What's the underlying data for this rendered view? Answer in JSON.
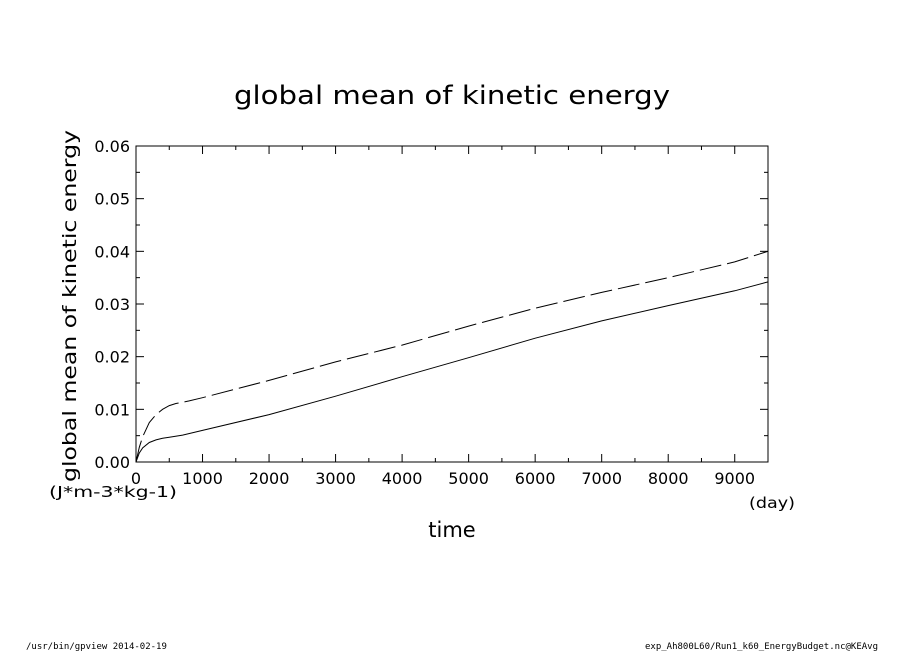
{
  "chart_data": {
    "type": "line",
    "title": "global mean of kinetic energy",
    "xlabel": "time",
    "x_unit": "(day)",
    "ylabel": "global mean of kinetic energy",
    "y_unit": "(J*m-3*kg-1)",
    "xlim": [
      0,
      9500
    ],
    "ylim": [
      0,
      0.06
    ],
    "x_ticks": [
      "0",
      "1000",
      "2000",
      "3000",
      "4000",
      "5000",
      "6000",
      "7000",
      "8000",
      "9000"
    ],
    "y_ticks": [
      "0.00",
      "0.01",
      "0.02",
      "0.03",
      "0.04",
      "0.05",
      "0.06"
    ],
    "grid": false,
    "series": [
      {
        "style": "solid",
        "color": "#000000",
        "points": [
          [
            0,
            0
          ],
          [
            50,
            0.0017
          ],
          [
            100,
            0.0027
          ],
          [
            200,
            0.0037
          ],
          [
            300,
            0.0042
          ],
          [
            400,
            0.0045
          ],
          [
            500,
            0.0047
          ],
          [
            700,
            0.0051
          ],
          [
            1000,
            0.006
          ],
          [
            2000,
            0.009
          ],
          [
            3000,
            0.0125
          ],
          [
            4000,
            0.0162
          ],
          [
            5000,
            0.0198
          ],
          [
            6000,
            0.0235
          ],
          [
            7000,
            0.0268
          ],
          [
            8000,
            0.0297
          ],
          [
            9000,
            0.0325
          ],
          [
            9500,
            0.0342
          ]
        ]
      },
      {
        "style": "dashed",
        "color": "#000000",
        "points": [
          [
            0,
            0
          ],
          [
            50,
            0.0028
          ],
          [
            100,
            0.0048
          ],
          [
            200,
            0.0075
          ],
          [
            300,
            0.009
          ],
          [
            400,
            0.01
          ],
          [
            500,
            0.0107
          ],
          [
            600,
            0.0111
          ],
          [
            800,
            0.0116
          ],
          [
            1000,
            0.0122
          ],
          [
            2000,
            0.0155
          ],
          [
            3000,
            0.019
          ],
          [
            4000,
            0.0222
          ],
          [
            5000,
            0.0258
          ],
          [
            6000,
            0.0292
          ],
          [
            7000,
            0.0322
          ],
          [
            8000,
            0.035
          ],
          [
            9000,
            0.038
          ],
          [
            9500,
            0.04
          ]
        ]
      }
    ]
  },
  "footer": {
    "left": "/usr/bin/gpview  2014-02-19",
    "right": "exp_Ah800L60/Run1_k60_EnergyBudget.nc@KEAvg"
  }
}
